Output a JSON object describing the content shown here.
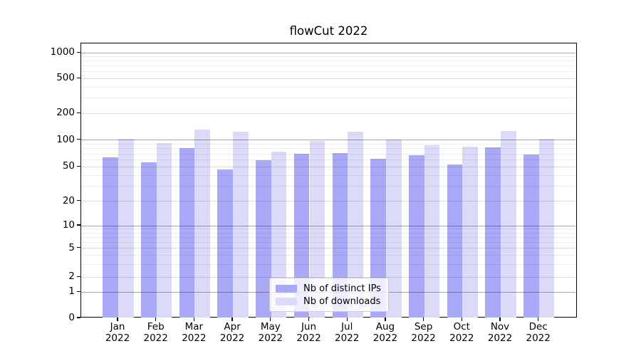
{
  "chart_data": {
    "type": "bar",
    "title": "flowCut 2022",
    "x_year": "2022",
    "months": [
      "Jan",
      "Feb",
      "Mar",
      "Apr",
      "May",
      "Jun",
      "Jul",
      "Aug",
      "Sep",
      "Oct",
      "Nov",
      "Dec"
    ],
    "series": [
      {
        "name": "Nb of distinct IPs",
        "color": "#a9a9f7",
        "values": [
          64,
          56,
          81,
          47,
          59,
          70,
          72,
          62,
          67,
          53,
          83,
          69
        ]
      },
      {
        "name": "Nb of downloads",
        "color": "#dbdbf9",
        "values": [
          103,
          92,
          131,
          125,
          74,
          97,
          124,
          102,
          88,
          85,
          126,
          103
        ]
      }
    ],
    "y_scale": "symlog-like",
    "y_ticks": [
      0,
      1,
      2,
      5,
      10,
      20,
      50,
      100,
      200,
      500,
      1000
    ],
    "ylim": [
      0,
      1300
    ],
    "grid": true,
    "legend_position": "lower center",
    "xlabel": "",
    "ylabel": ""
  }
}
